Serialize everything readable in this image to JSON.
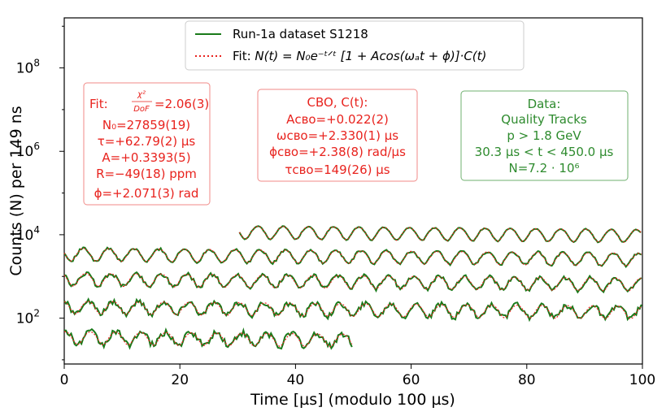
{
  "chart_data": {
    "type": "line",
    "title": "",
    "xlabel": "Time [µs] (modulo 100 µs)",
    "ylabel": "Counts (N) per 149 ns",
    "xlim": [
      0,
      100
    ],
    "ylog": true,
    "ylim_log10": [
      0.9,
      9.2
    ],
    "x_ticks": [
      "0",
      "20",
      "40",
      "60",
      "80",
      "100"
    ],
    "y_ticks": [
      {
        "base": "10",
        "exp": "2"
      },
      {
        "base": "10",
        "exp": "4"
      },
      {
        "base": "10",
        "exp": "6"
      },
      {
        "base": "10",
        "exp": "8"
      }
    ],
    "omega_period_us": 4.365,
    "series": [
      {
        "name": "Run-1a dataset S1218",
        "role": "data",
        "color": "#1a7a1a"
      },
      {
        "name": "Fit: N(t) = N0 e^(-t/τ)[1 + A cos(ωa t + φ)]·C(t)",
        "role": "fit",
        "color": "#e8231e"
      }
    ],
    "wraps": [
      {
        "t_start": 30.3,
        "t_end": 100,
        "log_offset": 4.08
      },
      {
        "t_start": 0,
        "t_end": 100,
        "log_offset": 3.55
      },
      {
        "t_start": 0,
        "t_end": 100,
        "log_offset": 2.95
      },
      {
        "t_start": 0,
        "t_end": 100,
        "log_offset": 2.28
      },
      {
        "t_start": 0,
        "t_end": 50,
        "log_offset": 1.55
      }
    ],
    "legend": {
      "data_label": "Run-1a dataset S1218",
      "fit_prefix": "Fit: ",
      "fit_formula": "N(t) = N₀e⁻ᵗᐟᵗ [1 + Acos(ωₐt + ϕ)]·C(t)"
    },
    "annotations": {
      "fit_box": {
        "chi_label": "Fit:",
        "chi_frac_top": "χ²",
        "chi_frac_bottom": "DoF",
        "chi_value": "=2.06(3)",
        "lines": [
          "N₀=27859(19)",
          "τ=+62.79(2) µs",
          "A=+0.3393(5)",
          "R=−49(18) ppm",
          "ϕ=+2.071(3) rad"
        ]
      },
      "cbo_box": {
        "title": "CBO, C(t):",
        "lines": [
          "Aᴄʙᴏ=+0.022(2)",
          "ωᴄʙᴏ=+2.330(1) µs",
          "ϕᴄʙᴏ=+2.38(8) rad/µs",
          "τᴄʙᴏ=149(26) µs"
        ]
      },
      "data_box": {
        "title": "Data:",
        "lines": [
          "Quality Tracks",
          "p > 1.8 GeV",
          "30.3 µs < t < 450.0 µs",
          "N=7.2 · 10⁶"
        ]
      }
    }
  }
}
